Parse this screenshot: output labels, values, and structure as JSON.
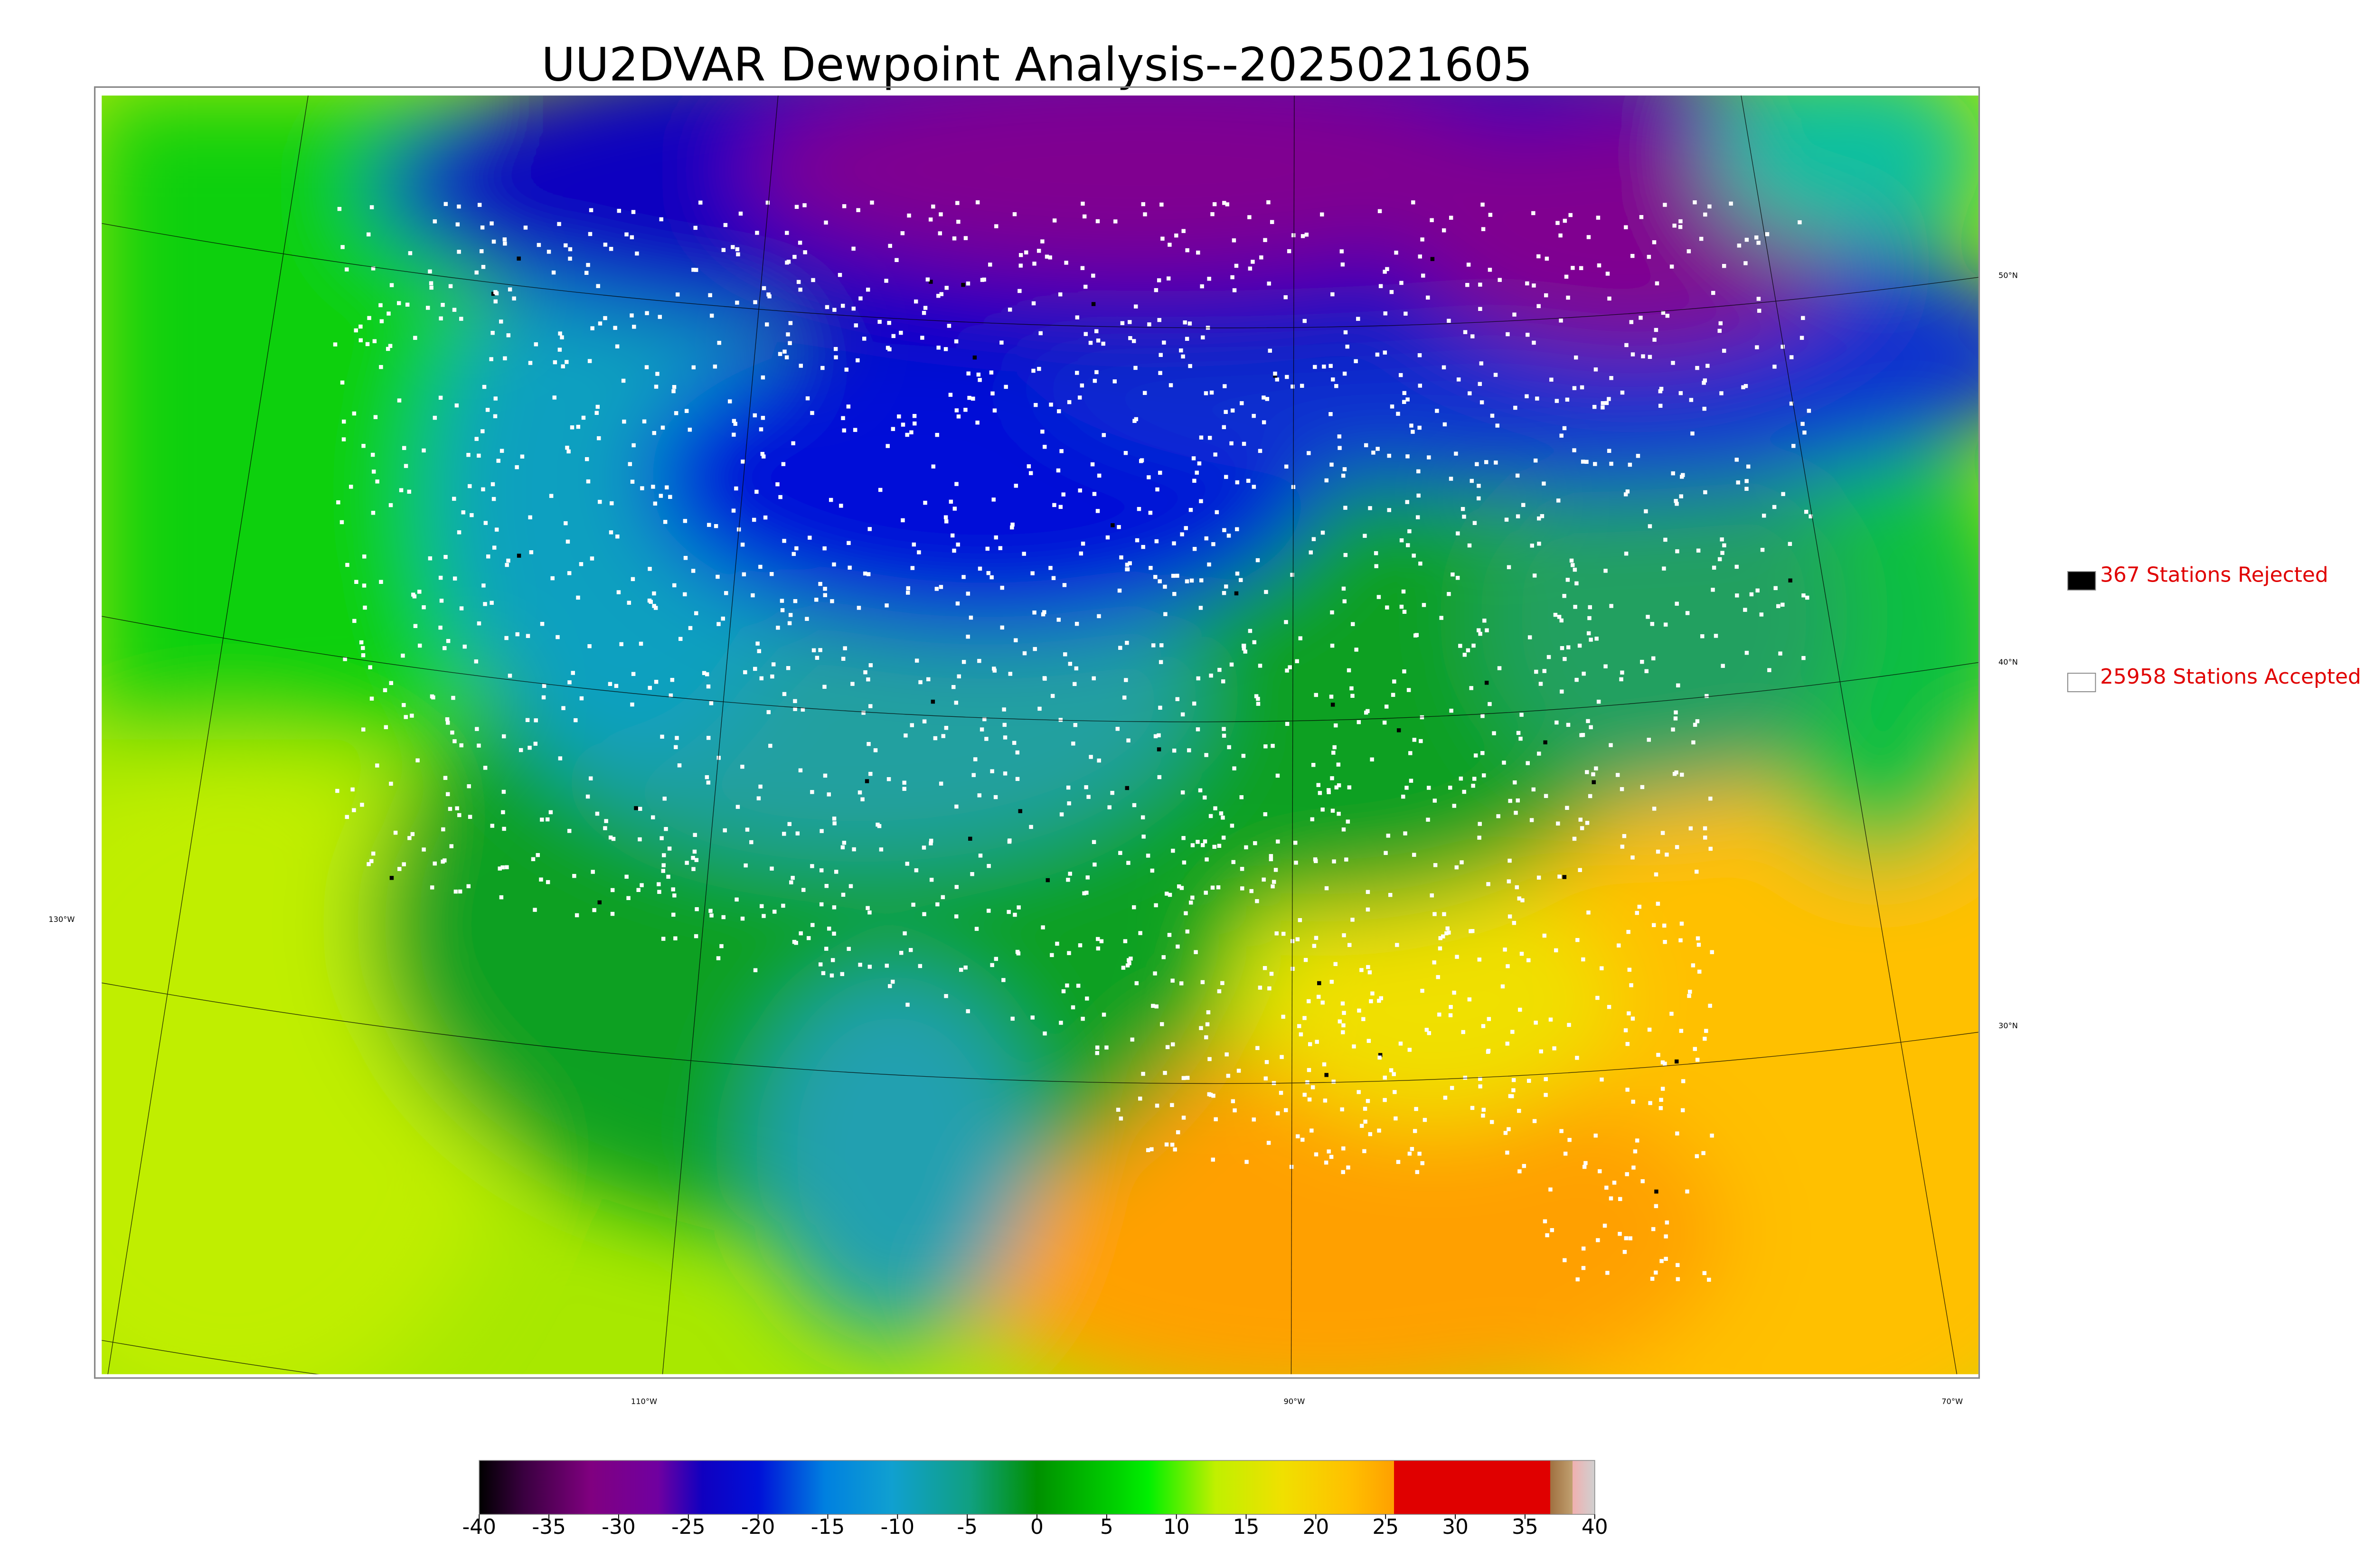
{
  "title": "UU2DVAR Dewpoint Analysis--2025021605",
  "legend": [
    {
      "label": "367 Stations Rejected",
      "color": "#000000"
    },
    {
      "label": "25958 Stations Accepted",
      "color": "#ffffff"
    }
  ],
  "lat_labels": [
    "50°N",
    "40°N",
    "30°N"
  ],
  "lon_labels": [
    "130°W",
    "110°W",
    "90°W",
    "70°W"
  ],
  "colorbar": {
    "lim": [
      -40,
      40
    ],
    "ticks": [
      -40,
      -35,
      -30,
      -25,
      -20,
      -15,
      -10,
      -5,
      0,
      5,
      10,
      15,
      20,
      25,
      30,
      35,
      40
    ]
  }
}
